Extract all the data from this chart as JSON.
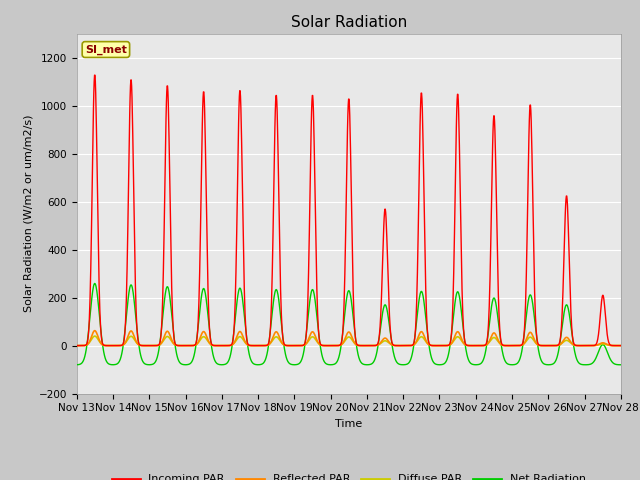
{
  "title": "Solar Radiation",
  "ylabel": "Solar Radiation (W/m2 or um/m2/s)",
  "xlabel": "Time",
  "station_label": "SI_met",
  "ylim": [
    -200,
    1300
  ],
  "yticks": [
    -200,
    0,
    200,
    400,
    600,
    800,
    1000,
    1200
  ],
  "x_tick_labels": [
    "Nov 13",
    "Nov 14",
    "Nov 15",
    "Nov 16",
    "Nov 17",
    "Nov 18",
    "Nov 19",
    "Nov 20",
    "Nov 21",
    "Nov 22",
    "Nov 23",
    "Nov 24",
    "Nov 25",
    "Nov 26",
    "Nov 27",
    "Nov 28"
  ],
  "num_days": 15,
  "line_colors": {
    "incoming": "#ff0000",
    "reflected": "#ff8800",
    "diffuse": "#cccc00",
    "net": "#00cc00"
  },
  "legend_labels": [
    "Incoming PAR",
    "Reflected PAR",
    "Diffuse PAR",
    "Net Radiation"
  ],
  "fig_bg_color": "#c8c8c8",
  "plot_bg": "#e8e8e8",
  "grid_color": "#ffffff",
  "title_fontsize": 11,
  "label_fontsize": 8,
  "tick_fontsize": 7.5
}
